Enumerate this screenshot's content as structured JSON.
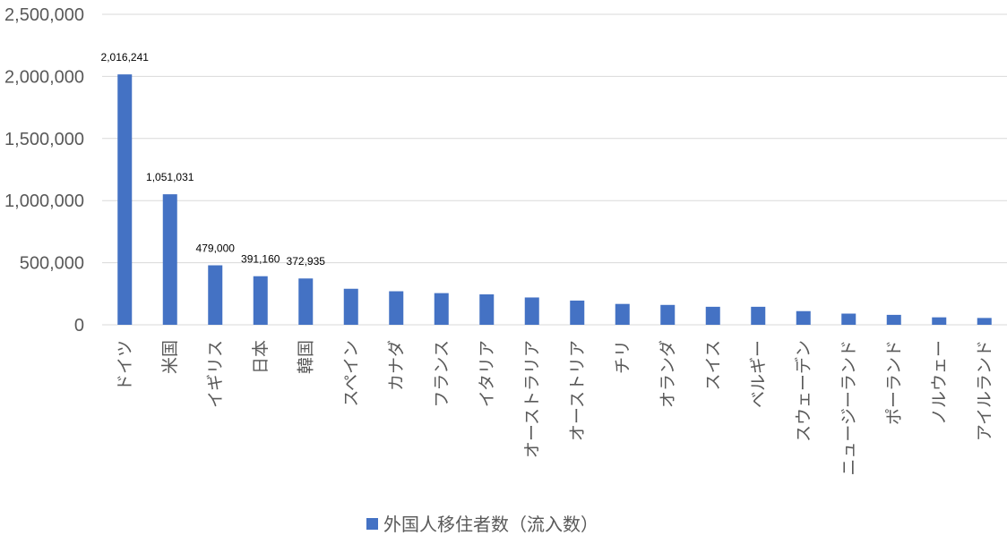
{
  "chart_data": {
    "type": "bar",
    "categories": [
      "ドイツ",
      "米国",
      "イギリス",
      "日本",
      "韓国",
      "スペイン",
      "カナダ",
      "フランス",
      "イタリア",
      "オーストラリア",
      "オーストリア",
      "チリ",
      "オランダ",
      "スイス",
      "ベルギー",
      "スウェーデン",
      "ニュージーランド",
      "ポーランド",
      "ノルウェー",
      "アイルランド"
    ],
    "series": [
      {
        "name": "外国人移住者数（流入数）",
        "color": "#4472C4",
        "values": [
          2016241,
          1051031,
          479000,
          391160,
          372935,
          290000,
          270000,
          255000,
          245000,
          220000,
          195000,
          168000,
          160000,
          145000,
          145000,
          110000,
          90000,
          80000,
          60000,
          55000
        ]
      }
    ],
    "data_labels": [
      "2,016,241",
      "1,051,031",
      "479,000",
      "391,160",
      "372,935"
    ],
    "y_ticks": [
      "0",
      "500,000",
      "1,000,000",
      "1,500,000",
      "2,000,000",
      "2,500,000"
    ],
    "ylim": [
      0,
      2500000
    ],
    "grid": true,
    "legend_position": "bottom",
    "title": "",
    "xlabel": "",
    "ylabel": ""
  }
}
